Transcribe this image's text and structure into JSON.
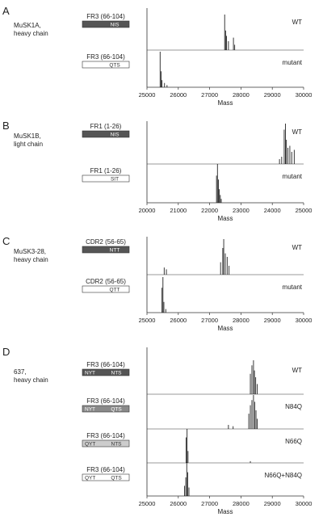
{
  "figure_type": "mass spectra panels",
  "chart_data": [
    {
      "panel": "A",
      "type": "line",
      "sample": [
        "MuSK1A,",
        "heavy chain"
      ],
      "xlabel": "Mass",
      "xlim": [
        25000,
        30000
      ],
      "x_ticks": [
        "25000",
        "26000",
        "27000",
        "28000",
        "29000",
        "30000"
      ],
      "series": [
        {
          "name": "WT",
          "region": "FR3 (66-104)",
          "box": {
            "style": "dark",
            "text_left": "",
            "text_right": "NIS",
            "bg": "#555555",
            "fg": "#ffffff"
          },
          "peaks": [
            [
              27480,
              1.0
            ],
            [
              27510,
              0.55
            ],
            [
              27540,
              0.4
            ],
            [
              27600,
              0.25
            ],
            [
              27760,
              0.35
            ],
            [
              27800,
              0.15
            ]
          ]
        },
        {
          "name": "mutant",
          "region": "FR3 (66-104)",
          "box": {
            "style": "light",
            "text_left": "",
            "text_right": "QTS",
            "bg": "#ffffff",
            "fg": "#333333"
          },
          "peaks": [
            [
              25420,
              1.0
            ],
            [
              25450,
              0.45
            ],
            [
              25480,
              0.2
            ],
            [
              25560,
              0.12
            ],
            [
              25640,
              0.06
            ]
          ]
        }
      ]
    },
    {
      "panel": "B",
      "type": "line",
      "sample": [
        "MuSK1B,",
        "light chain"
      ],
      "xlabel": "Mass",
      "xlim": [
        20000,
        25000
      ],
      "x_ticks": [
        "20000",
        "21000",
        "22000",
        "23000",
        "24000",
        "25000"
      ],
      "series": [
        {
          "name": "WT",
          "region": "FR1 (1-26)",
          "box": {
            "style": "dark",
            "text_left": "",
            "text_right": "NIS",
            "bg": "#555555",
            "fg": "#ffffff"
          },
          "peaks": [
            [
              24380,
              0.85
            ],
            [
              24420,
              1.0
            ],
            [
              24450,
              0.6
            ],
            [
              24500,
              0.4
            ],
            [
              24560,
              0.45
            ],
            [
              24620,
              0.3
            ],
            [
              24700,
              0.35
            ],
            [
              24230,
              0.12
            ],
            [
              24300,
              0.18
            ]
          ]
        },
        {
          "name": "mutant",
          "region": "FR1 (1-26)",
          "box": {
            "style": "light",
            "text_left": "",
            "text_right": "SIT",
            "bg": "#ffffff",
            "fg": "#333333"
          },
          "peaks": [
            [
              22220,
              0.7
            ],
            [
              22250,
              1.0
            ],
            [
              22280,
              0.6
            ],
            [
              22310,
              0.35
            ],
            [
              22340,
              0.2
            ],
            [
              22370,
              0.1
            ]
          ]
        }
      ]
    },
    {
      "panel": "C",
      "type": "line",
      "sample": [
        "MuSK3-28,",
        "heavy chain"
      ],
      "xlabel": "Mass",
      "xlim": [
        25000,
        30000
      ],
      "x_ticks": [
        "25000",
        "26000",
        "27000",
        "28000",
        "29000",
        "30000"
      ],
      "series": [
        {
          "name": "WT",
          "region": "CDR2 (56-65)",
          "box": {
            "style": "dark",
            "text_left": "",
            "text_right": "NTT",
            "bg": "#555555",
            "fg": "#ffffff"
          },
          "peaks": [
            [
              25550,
              0.2
            ],
            [
              25620,
              0.15
            ],
            [
              27350,
              0.35
            ],
            [
              27420,
              0.75
            ],
            [
              27450,
              1.0
            ],
            [
              27500,
              0.6
            ],
            [
              27560,
              0.5
            ],
            [
              27620,
              0.25
            ]
          ]
        },
        {
          "name": "mutant",
          "region": "CDR2 (56-65)",
          "box": {
            "style": "light",
            "text_left": "",
            "text_right": "QTT",
            "bg": "#ffffff",
            "fg": "#333333"
          },
          "peaks": [
            [
              25480,
              0.7
            ],
            [
              25510,
              1.0
            ],
            [
              25540,
              0.3
            ],
            [
              25600,
              0.1
            ]
          ]
        }
      ]
    },
    {
      "panel": "D",
      "type": "line",
      "sample": [
        "637,",
        "heavy chain"
      ],
      "xlabel": "Mass",
      "xlim": [
        25000,
        30000
      ],
      "x_ticks": [
        "25000",
        "26000",
        "27000",
        "28000",
        "29000",
        "30000"
      ],
      "series": [
        {
          "name": "WT",
          "region": "FR3 (66-104)",
          "box": {
            "style": "dark",
            "text_left": "NYT",
            "text_right": "NTS",
            "bg": "#555555",
            "fg": "#ffffff"
          },
          "peaks": [
            [
              28300,
              0.6
            ],
            [
              28350,
              0.85
            ],
            [
              28400,
              1.0
            ],
            [
              28430,
              0.7
            ],
            [
              28470,
              0.5
            ],
            [
              28520,
              0.3
            ]
          ]
        },
        {
          "name": "N84Q",
          "region": "FR3 (66-104)",
          "box": {
            "style": "mid",
            "text_left": "NYT",
            "text_right": "QTS",
            "bg": "#8a8a8a",
            "fg": "#ffffff"
          },
          "peaks": [
            [
              27600,
              0.12
            ],
            [
              27750,
              0.08
            ],
            [
              28250,
              0.45
            ],
            [
              28300,
              0.7
            ],
            [
              28350,
              0.85
            ],
            [
              28400,
              1.0
            ],
            [
              28440,
              0.8
            ],
            [
              28480,
              0.55
            ],
            [
              28520,
              0.3
            ]
          ]
        },
        {
          "name": "N66Q",
          "region": "FR3 (66-104)",
          "box": {
            "style": "pale",
            "text_left": "QYT",
            "text_right": "NTS",
            "bg": "#cccccc",
            "fg": "#333333"
          },
          "peaks": [
            [
              26250,
              0.75
            ],
            [
              26280,
              1.0
            ],
            [
              26310,
              0.35
            ],
            [
              28300,
              0.05
            ]
          ]
        },
        {
          "name": "N66Q+N84Q",
          "region": "FR3 (66-104)",
          "box": {
            "style": "light",
            "text_left": "QYT",
            "text_right": "QTS",
            "bg": "#ffffff",
            "fg": "#333333"
          },
          "peaks": [
            [
              26200,
              0.3
            ],
            [
              26240,
              0.55
            ],
            [
              26270,
              1.0
            ],
            [
              26300,
              0.7
            ],
            [
              26340,
              0.25
            ]
          ]
        }
      ]
    }
  ]
}
